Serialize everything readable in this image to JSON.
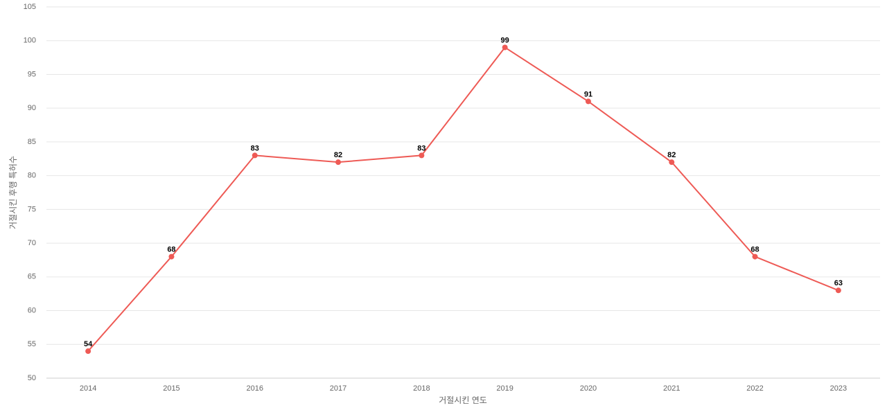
{
  "chart_data": {
    "type": "line",
    "x_label": "거절시킨 연도",
    "y_label": "거절시킨 후행 특허수",
    "categories": [
      "2014",
      "2015",
      "2016",
      "2017",
      "2018",
      "2019",
      "2020",
      "2021",
      "2022",
      "2023"
    ],
    "series": [
      {
        "name": "거절시킨 후행 특허수",
        "color": "#ee5a55",
        "values": [
          54,
          68,
          83,
          82,
          83,
          99,
          91,
          82,
          68,
          63
        ]
      }
    ],
    "ylim": [
      50,
      105
    ],
    "yticks": [
      50,
      55,
      60,
      65,
      70,
      75,
      80,
      85,
      90,
      95,
      100,
      105
    ],
    "grid": true
  }
}
